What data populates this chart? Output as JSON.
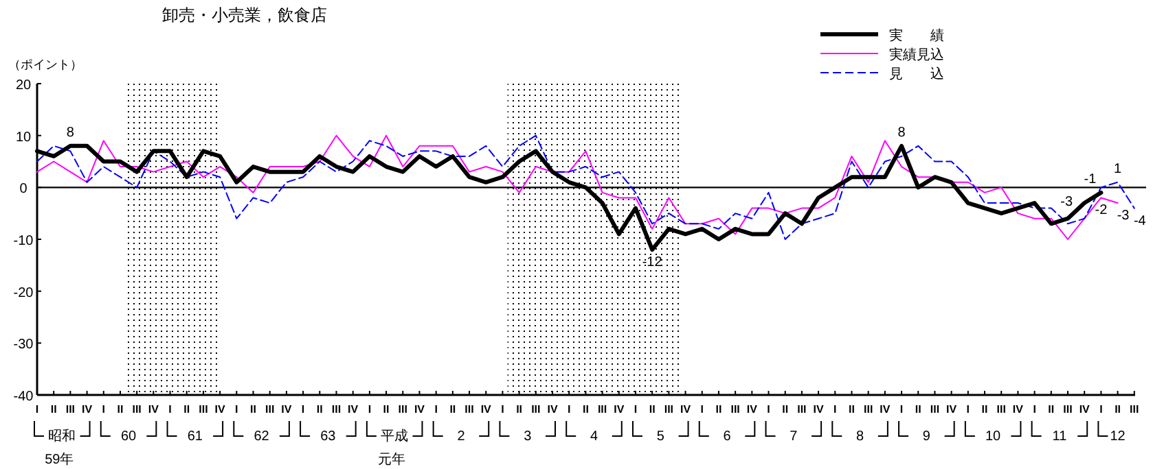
{
  "chart_data": {
    "type": "line",
    "title": "卸売・小売業，飲食店",
    "ylabel": "（ポイント）",
    "categories": [
      "I",
      "II",
      "III",
      "IV",
      "I",
      "II",
      "III",
      "IV",
      "I",
      "II",
      "III",
      "IV",
      "I",
      "II",
      "III",
      "IV",
      "I",
      "II",
      "III",
      "IV",
      "I",
      "II",
      "III",
      "IV",
      "I",
      "II",
      "III",
      "IV",
      "I",
      "II",
      "III",
      "IV",
      "I",
      "II",
      "III",
      "IV",
      "I",
      "II",
      "III",
      "IV",
      "I",
      "II",
      "III",
      "IV",
      "I",
      "II",
      "III",
      "IV",
      "I",
      "II",
      "III",
      "IV",
      "I",
      "II",
      "III",
      "IV",
      "I",
      "II",
      "III",
      "IV",
      "I",
      "II",
      "III",
      "IV",
      "I",
      "II",
      "III"
    ],
    "series": [
      {
        "name": "実　　績",
        "color": "#000000",
        "line_style": "solid",
        "values": [
          7,
          6,
          8,
          8,
          5,
          5,
          3,
          7,
          7,
          2,
          7,
          6,
          1,
          4,
          3,
          3,
          3,
          6,
          4,
          3,
          6,
          4,
          3,
          6,
          4,
          6,
          2,
          1,
          2,
          5,
          7,
          3,
          1,
          0,
          -3,
          -9,
          -4,
          -12,
          -8,
          -9,
          -8,
          -10,
          -8,
          -9,
          -9,
          -5,
          -7,
          -2,
          0,
          2,
          2,
          2,
          8,
          0,
          2,
          1,
          -3,
          -4,
          -5,
          -4,
          -3,
          -7,
          -6,
          -3,
          -1,
          null,
          null
        ],
        "value_labels": [
          null,
          null,
          "8",
          null,
          null,
          null,
          null,
          null,
          null,
          null,
          null,
          null,
          null,
          null,
          null,
          null,
          null,
          null,
          null,
          null,
          null,
          null,
          null,
          null,
          null,
          null,
          null,
          null,
          null,
          null,
          null,
          null,
          null,
          null,
          null,
          null,
          null,
          "-12",
          null,
          null,
          null,
          null,
          null,
          null,
          null,
          null,
          null,
          null,
          null,
          null,
          null,
          null,
          "8",
          null,
          null,
          null,
          null,
          null,
          null,
          null,
          null,
          null,
          null,
          "-3",
          "-1",
          null,
          null
        ]
      },
      {
        "name": "実績見込",
        "color": "#ff00ff",
        "line_style": "solid",
        "values": [
          3,
          5,
          3,
          1,
          9,
          4,
          4,
          3,
          4,
          5,
          2,
          4,
          2,
          -1,
          4,
          4,
          4,
          5,
          10,
          6,
          4,
          10,
          4,
          8,
          8,
          8,
          3,
          4,
          3,
          -1,
          4,
          3,
          3,
          7,
          -1,
          -2,
          -2,
          -8,
          -2,
          -7,
          -7,
          -6,
          -9,
          -4,
          -4,
          -5,
          -4,
          -4,
          -2,
          6,
          1,
          9,
          4,
          2,
          2,
          1,
          1,
          -1,
          0,
          -5,
          -6,
          -6,
          -10,
          -6,
          -2,
          -3,
          null
        ],
        "value_labels": [
          null,
          null,
          null,
          null,
          null,
          null,
          null,
          null,
          null,
          null,
          null,
          null,
          null,
          null,
          null,
          null,
          null,
          null,
          null,
          null,
          null,
          null,
          null,
          null,
          null,
          null,
          null,
          null,
          null,
          null,
          null,
          null,
          null,
          null,
          null,
          null,
          null,
          null,
          null,
          null,
          null,
          null,
          null,
          null,
          null,
          null,
          null,
          null,
          null,
          null,
          null,
          null,
          null,
          null,
          null,
          null,
          null,
          null,
          null,
          null,
          null,
          null,
          null,
          null,
          "-2",
          "-3",
          null
        ]
      },
      {
        "name": "見　　込",
        "color": "#0000ff",
        "line_style": "dashed",
        "values": [
          5,
          8,
          7,
          1,
          4,
          2,
          0,
          7,
          5,
          2,
          3,
          2,
          -6,
          -2,
          -3,
          1,
          2,
          5,
          3,
          5,
          9,
          8,
          6,
          7,
          7,
          6,
          6,
          8,
          4,
          8,
          10,
          3,
          3,
          4,
          2,
          3,
          -1,
          -7,
          -5,
          -7,
          -7,
          -8,
          -5,
          -6,
          -1,
          -10,
          -7,
          -6,
          -5,
          5,
          0,
          5,
          6,
          8,
          5,
          5,
          2,
          -3,
          -3,
          -3,
          -4,
          -4,
          -7,
          -6,
          0,
          1,
          -4
        ],
        "value_labels": [
          null,
          null,
          null,
          null,
          null,
          null,
          null,
          null,
          null,
          null,
          null,
          null,
          null,
          null,
          null,
          null,
          null,
          null,
          null,
          null,
          null,
          null,
          null,
          null,
          null,
          null,
          null,
          null,
          null,
          null,
          null,
          null,
          null,
          null,
          null,
          null,
          null,
          null,
          null,
          null,
          null,
          null,
          null,
          null,
          null,
          null,
          null,
          null,
          null,
          null,
          null,
          null,
          null,
          null,
          null,
          null,
          null,
          null,
          null,
          null,
          null,
          null,
          null,
          null,
          null,
          "1",
          "-4"
        ]
      }
    ],
    "ylim": [
      -40,
      20
    ],
    "yticks": [
      20,
      10,
      0,
      -10,
      -20,
      -30,
      -40
    ],
    "ref_lines": [
      {
        "axis": "y",
        "value": 0,
        "color": "#000000"
      }
    ],
    "legend": "top right",
    "annotations": [
      "昭和",
      "60",
      "61",
      "62",
      "63",
      "平成",
      "2",
      "3",
      "4",
      "5",
      "6",
      "7",
      "8",
      "9",
      "10",
      "11",
      "12",
      "59年",
      "元年"
    ]
  }
}
